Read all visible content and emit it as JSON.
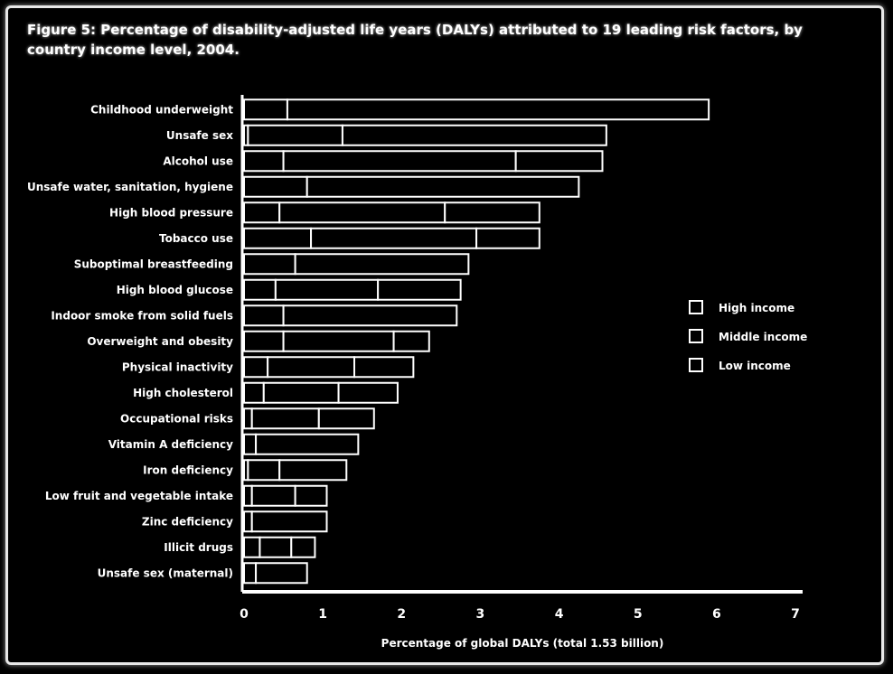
{
  "chart_data": {
    "type": "bar",
    "orientation": "horizontal",
    "stacked": true,
    "title": "Figure 5: Percentage of disability-adjusted life years (DALYs) attributed to 19 leading risk factors, by country income level, 2004.",
    "xlabel": "Percentage of global DALYs (total 1.53 billion)",
    "ylabel": "",
    "xlim": [
      0,
      7
    ],
    "xticks": [
      "0",
      "1",
      "2",
      "3",
      "4",
      "5",
      "6",
      "7"
    ],
    "legend_position": "right",
    "categories": [
      "Childhood underweight",
      "Unsafe sex",
      "Alcohol use",
      "Unsafe water, sanitation, hygiene",
      "High blood pressure",
      "Tobacco use",
      "Suboptimal breastfeeding",
      "High blood glucose",
      "Indoor smoke from solid fuels",
      "Overweight and obesity",
      "Physical inactivity",
      "High cholesterol",
      "Occupational risks",
      "Vitamin A deficiency",
      "Iron deficiency",
      "Low fruit and vegetable intake",
      "Zinc deficiency",
      "Illicit drugs",
      "Unsafe sex (maternal)"
    ],
    "series": [
      {
        "name": "High income",
        "color": "#cccccc",
        "values": [
          0.0,
          0.05,
          0.5,
          0.0,
          0.45,
          0.85,
          0.0,
          0.4,
          0.0,
          0.5,
          0.3,
          0.25,
          0.1,
          0.0,
          0.05,
          0.1,
          0.0,
          0.2,
          0.0
        ]
      },
      {
        "name": "Middle income",
        "color": "#888888",
        "values": [
          0.55,
          1.2,
          2.95,
          0.8,
          2.1,
          2.1,
          0.65,
          1.3,
          0.5,
          1.4,
          1.1,
          0.95,
          0.85,
          0.15,
          0.4,
          0.55,
          0.1,
          0.4,
          0.15
        ]
      },
      {
        "name": "Low income",
        "color": "#444444",
        "values": [
          5.35,
          3.35,
          1.1,
          3.45,
          1.2,
          0.8,
          2.2,
          1.05,
          2.2,
          0.45,
          0.75,
          0.75,
          0.7,
          1.3,
          0.85,
          0.4,
          0.95,
          0.3,
          0.65
        ]
      }
    ]
  }
}
